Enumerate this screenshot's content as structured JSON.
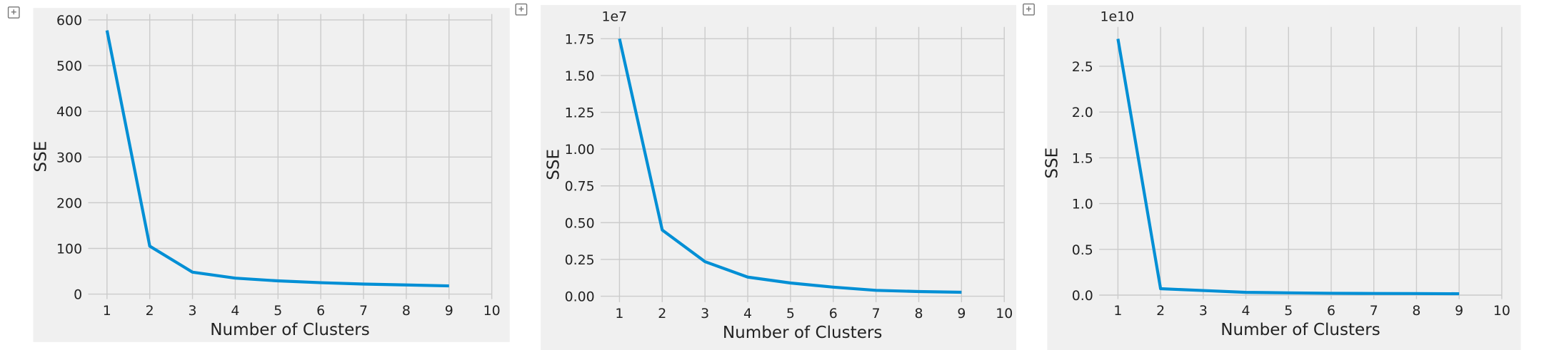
{
  "chart_data": [
    {
      "type": "line",
      "x": [
        1,
        2,
        3,
        4,
        5,
        6,
        7,
        8,
        9
      ],
      "values": [
        577,
        105,
        48,
        35,
        29,
        25,
        22,
        20,
        18
      ],
      "color": "#008fd5",
      "xlabel": "Number of Clusters",
      "ylabel": "SSE",
      "xlim": [
        0.56,
        10
      ],
      "ylim": [
        -11,
        613
      ],
      "xticks": [
        1,
        2,
        3,
        4,
        5,
        6,
        7,
        8,
        9,
        10
      ],
      "yticks": [
        0,
        100,
        200,
        300,
        400,
        500,
        600
      ],
      "grid": true
    },
    {
      "type": "line",
      "x": [
        1,
        2,
        3,
        4,
        5,
        6,
        7,
        8,
        9
      ],
      "values": [
        17500000,
        4500000,
        2350000,
        1300000,
        900000,
        620000,
        400000,
        320000,
        270000
      ],
      "color": "#008fd5",
      "xlabel": "Number of Clusters",
      "ylabel": "SSE",
      "offset_text": "1e7",
      "xlim": [
        0.56,
        10
      ],
      "ylim": [
        -400000,
        18300000
      ],
      "xticks": [
        1,
        2,
        3,
        4,
        5,
        6,
        7,
        8,
        9,
        10
      ],
      "yticks": [
        {
          "value": 0,
          "label": "0.00"
        },
        {
          "value": 2500000,
          "label": "0.25"
        },
        {
          "value": 5000000,
          "label": "0.50"
        },
        {
          "value": 7500000,
          "label": "0.75"
        },
        {
          "value": 10000000,
          "label": "1.00"
        },
        {
          "value": 12500000,
          "label": "1.25"
        },
        {
          "value": 15000000,
          "label": "1.50"
        },
        {
          "value": 17500000,
          "label": "1.75"
        }
      ],
      "grid": true
    },
    {
      "type": "line",
      "x": [
        1,
        2,
        3,
        4,
        5,
        6,
        7,
        8,
        9
      ],
      "values": [
        28000000000,
        700000000,
        500000000,
        300000000,
        250000000,
        200000000,
        180000000,
        170000000,
        150000000
      ],
      "color": "#008fd5",
      "xlabel": "Number of Clusters",
      "ylabel": "SSE",
      "offset_text": "1e10",
      "xlim": [
        0.56,
        10
      ],
      "ylim": [
        -440000000,
        29300000000
      ],
      "xticks": [
        1,
        2,
        3,
        4,
        5,
        6,
        7,
        8,
        9,
        10
      ],
      "yticks": [
        {
          "value": 0,
          "label": "0.0"
        },
        {
          "value": 5000000000,
          "label": "0.5"
        },
        {
          "value": 10000000000,
          "label": "1.0"
        },
        {
          "value": 15000000000,
          "label": "1.5"
        },
        {
          "value": 20000000000,
          "label": "2.0"
        },
        {
          "value": 25000000000,
          "label": "2.5"
        }
      ],
      "grid": true
    }
  ]
}
